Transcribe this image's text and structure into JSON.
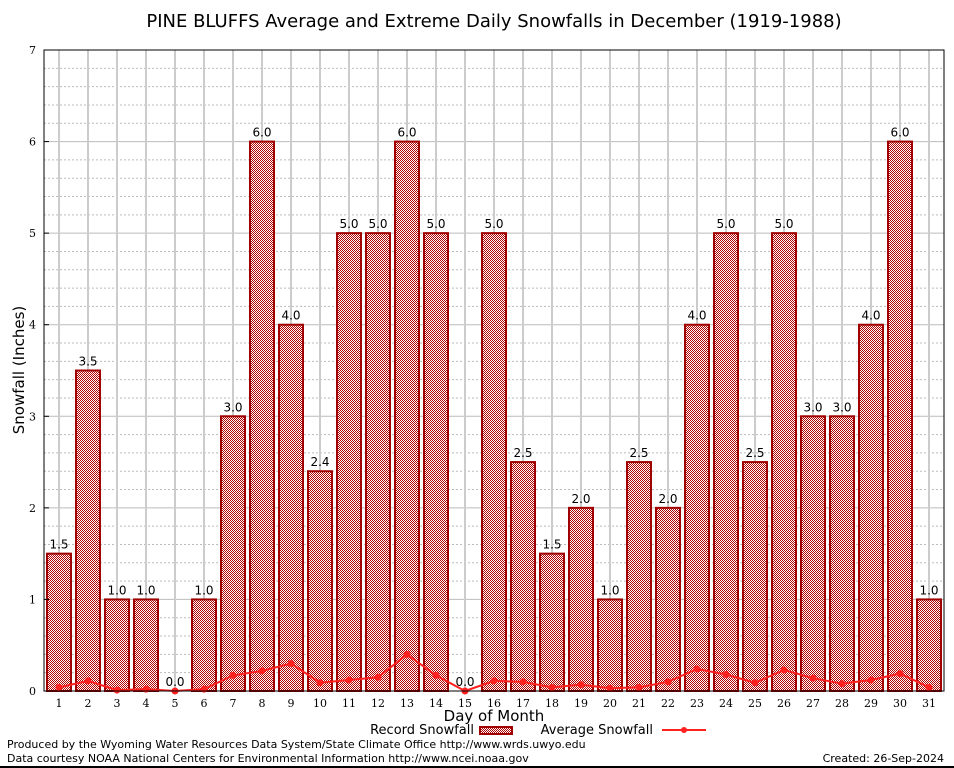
{
  "chart_data": {
    "type": "bar",
    "title": "PINE BLUFFS Average and Extreme Daily Snowfalls in December (1919-1988)",
    "xlabel": "Day of Month",
    "ylabel": "Snowfall (Inches)",
    "ylim": [
      0,
      7
    ],
    "yticks": [
      0,
      1,
      2,
      3,
      4,
      5,
      6,
      7
    ],
    "grid": true,
    "legend_position": "bottom",
    "categories": [
      "1",
      "2",
      "3",
      "4",
      "5",
      "6",
      "7",
      "8",
      "9",
      "10",
      "11",
      "12",
      "13",
      "14",
      "15",
      "16",
      "17",
      "18",
      "19",
      "20",
      "21",
      "22",
      "23",
      "24",
      "25",
      "26",
      "27",
      "28",
      "29",
      "30",
      "31"
    ],
    "series": [
      {
        "name": "Record Snowfall",
        "kind": "bar",
        "color": "#a00000",
        "values": [
          1.5,
          3.5,
          1.0,
          1.0,
          0.0,
          1.0,
          3.0,
          6.0,
          4.0,
          2.4,
          5.0,
          5.0,
          6.0,
          5.0,
          0.0,
          5.0,
          2.5,
          1.5,
          2.0,
          1.0,
          2.5,
          2.0,
          4.0,
          5.0,
          2.5,
          5.0,
          3.0,
          3.0,
          4.0,
          6.0,
          1.0
        ],
        "labels": [
          "1.5",
          "3.5",
          "1.0",
          "1.0",
          "0.0",
          "1.0",
          "3.0",
          "6.0",
          "4.0",
          "2.4",
          "5.0",
          "5.0",
          "6.0",
          "5.0",
          "0.0",
          "5.0",
          "2.5",
          "1.5",
          "2.0",
          "1.0",
          "2.5",
          "2.0",
          "4.0",
          "5.0",
          "2.5",
          "5.0",
          "3.0",
          "3.0",
          "4.0",
          "6.0",
          "1.0"
        ]
      },
      {
        "name": "Average Snowfall",
        "kind": "line",
        "color": "#ff2020",
        "values": [
          0.04,
          0.11,
          0.01,
          0.02,
          0.0,
          0.02,
          0.17,
          0.22,
          0.3,
          0.09,
          0.12,
          0.15,
          0.4,
          0.17,
          0.0,
          0.11,
          0.1,
          0.04,
          0.07,
          0.03,
          0.04,
          0.1,
          0.24,
          0.18,
          0.09,
          0.23,
          0.14,
          0.08,
          0.12,
          0.19,
          0.04
        ]
      }
    ]
  },
  "footer": {
    "line1": "Produced by the Wyoming Water Resources Data System/State Climate Office http://www.wrds.uwyo.edu",
    "line2": "Data courtesy NOAA National Centers for Environmental Information http://www.ncei.noaa.gov",
    "created": "Created: 26-Sep-2024"
  }
}
